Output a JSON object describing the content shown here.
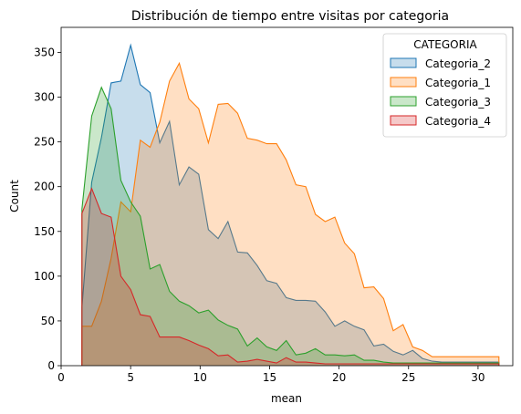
{
  "chart_data": {
    "type": "area",
    "title": "Distribución de tiempo entre visitas por categoria",
    "xlabel": "mean",
    "ylabel": "Count",
    "xlim": [
      0,
      32.5
    ],
    "ylim": [
      0,
      378
    ],
    "xticks": [
      0,
      5,
      10,
      15,
      20,
      25,
      30
    ],
    "yticks": [
      0,
      50,
      100,
      150,
      200,
      250,
      300,
      350
    ],
    "grid": false,
    "legend": {
      "title": "CATEGORIA",
      "placement": "top-right"
    },
    "x": [
      1.5,
      2.2,
      2.9,
      3.6,
      4.3,
      5.0,
      5.7,
      6.4,
      7.1,
      7.8,
      8.5,
      9.2,
      9.9,
      10.6,
      11.3,
      12.0,
      12.7,
      13.4,
      14.1,
      14.8,
      15.5,
      16.2,
      16.9,
      17.6,
      18.3,
      19.0,
      19.7,
      20.4,
      21.1,
      21.8,
      22.5,
      23.2,
      23.9,
      24.6,
      25.3,
      26.0,
      26.7,
      27.4,
      28.1,
      28.8,
      29.5,
      30.2,
      30.9,
      31.5
    ],
    "series": [
      {
        "name": "Categoria_2",
        "color": "#1f77b4",
        "values": [
          65,
          205,
          255,
          316,
          318,
          358,
          314,
          305,
          249,
          273,
          202,
          222,
          214,
          152,
          142,
          161,
          127,
          126,
          112,
          95,
          92,
          76,
          73,
          73,
          72,
          60,
          44,
          50,
          44,
          40,
          22,
          24,
          16,
          12,
          17,
          8,
          5,
          4,
          4,
          4,
          4,
          4,
          4,
          4
        ]
      },
      {
        "name": "Categoria_1",
        "color": "#ff7f0e",
        "values": [
          44,
          44,
          72,
          120,
          183,
          172,
          252,
          244,
          272,
          318,
          338,
          298,
          287,
          249,
          292,
          293,
          282,
          254,
          252,
          248,
          248,
          230,
          202,
          200,
          169,
          161,
          166,
          137,
          125,
          87,
          88,
          75,
          39,
          46,
          21,
          17,
          10,
          10,
          10,
          10,
          10,
          10,
          10,
          10
        ]
      },
      {
        "name": "Categoria_3",
        "color": "#2ca02c",
        "values": [
          175,
          279,
          311,
          287,
          207,
          183,
          167,
          108,
          113,
          83,
          72,
          67,
          59,
          62,
          51,
          45,
          41,
          22,
          31,
          21,
          17,
          28,
          12,
          14,
          19,
          12,
          12,
          11,
          12,
          6,
          6,
          4,
          3,
          3,
          3,
          3,
          3,
          3,
          3,
          3,
          3,
          3,
          3,
          3
        ]
      },
      {
        "name": "Categoria_4",
        "color": "#d62728",
        "values": [
          170,
          198,
          170,
          166,
          100,
          85,
          57,
          55,
          32,
          32,
          32,
          28,
          23,
          19,
          11,
          12,
          4,
          5,
          7,
          5,
          3,
          9,
          4,
          4,
          3,
          2,
          2,
          2,
          2,
          2,
          2,
          2,
          2,
          2,
          2,
          2,
          2,
          2,
          2,
          2,
          2,
          2,
          2,
          2
        ]
      }
    ]
  }
}
